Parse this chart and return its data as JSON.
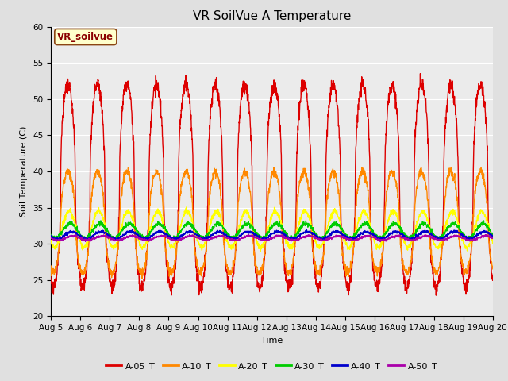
{
  "title": "VR SoilVue A Temperature",
  "xlabel": "Time",
  "ylabel": "Soil Temperature (C)",
  "ylim": [
    20,
    60
  ],
  "yticks": [
    20,
    25,
    30,
    35,
    40,
    45,
    50,
    55,
    60
  ],
  "date_labels": [
    "Aug 5",
    "Aug 6",
    "Aug 7",
    "Aug 8",
    "Aug 9",
    "Aug 10",
    "Aug 11",
    "Aug 12",
    "Aug 13",
    "Aug 14",
    "Aug 15",
    "Aug 16",
    "Aug 17",
    "Aug 18",
    "Aug 19",
    "Aug 20"
  ],
  "sensor_label": "VR_soilvue",
  "legend_entries": [
    "A-05_T",
    "A-10_T",
    "A-20_T",
    "A-30_T",
    "A-40_T",
    "A-50_T"
  ],
  "line_colors": [
    "#dd0000",
    "#ff8800",
    "#ffff00",
    "#00cc00",
    "#0000cc",
    "#aa00aa"
  ],
  "background_color": "#e0e0e0",
  "axes_background": "#ebebeb",
  "grid_color": "#ffffff",
  "title_fontsize": 11,
  "label_fontsize": 8,
  "tick_fontsize": 7.5,
  "n_days": 15,
  "points_per_day": 144,
  "A05_base": 38,
  "A05_amp": 14,
  "A10_base": 33,
  "A10_amp": 7,
  "A20_base": 32,
  "A20_amp": 2.5,
  "A30_base": 31.8,
  "A30_amp": 1.0,
  "A40_base": 31.2,
  "A40_amp": 0.5,
  "A50_base": 30.8,
  "A50_amp": 0.3
}
